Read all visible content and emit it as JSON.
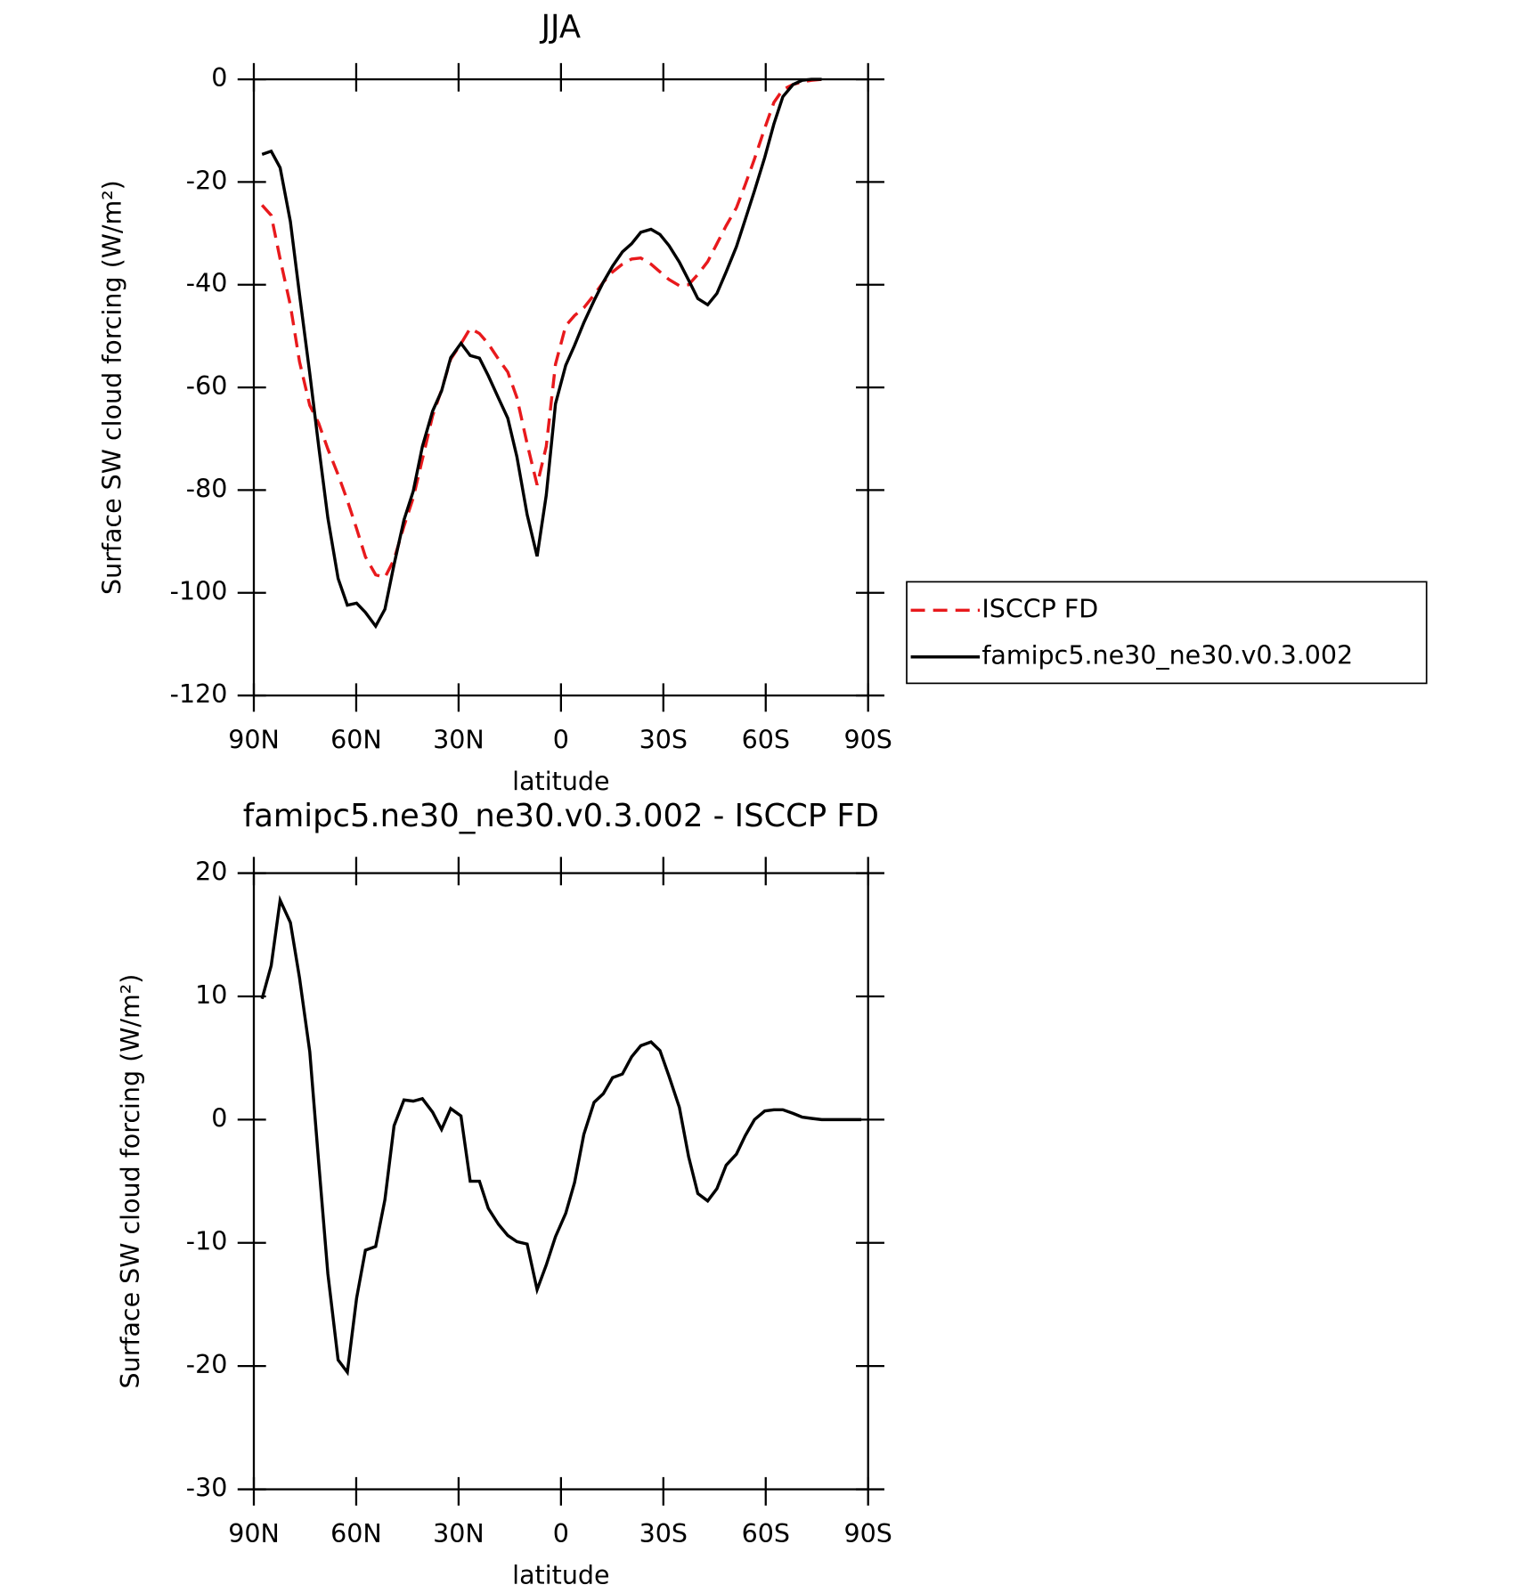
{
  "chart_data": [
    {
      "type": "line",
      "title": "JJA",
      "xlabel": "latitude",
      "ylabel": "Surface SW cloud forcing (W/m²)",
      "x": [
        87.6,
        84.9,
        82.3,
        79.3,
        76.6,
        73.6,
        71.0,
        68.3,
        65.3,
        62.6,
        59.9,
        57.3,
        54.3,
        51.6,
        48.9,
        46.0,
        43.3,
        40.6,
        37.6,
        35.0,
        32.3,
        29.3,
        26.6,
        23.9,
        21.3,
        18.3,
        15.6,
        12.9,
        9.9,
        7.0,
        4.3,
        1.6,
        -1.4,
        -4.0,
        -6.7,
        -9.7,
        -12.4,
        -15.1,
        -18.0,
        -20.7,
        -23.4,
        -26.4,
        -29.0,
        -31.7,
        -34.7,
        -37.4,
        -40.1,
        -43.0,
        -45.7,
        -48.4,
        -51.4,
        -54.0,
        -56.7,
        -59.7,
        -62.4,
        -65.0,
        -68.0,
        -70.7,
        -73.4,
        -76.4
      ],
      "series": [
        {
          "name": "ISCCP FD",
          "color": "#e8191c",
          "line_style": "dashed",
          "values": [
            -24.5,
            -26.5,
            -35,
            -44,
            -55,
            -63.5,
            -67,
            -72,
            -77,
            -82,
            -87.5,
            -93,
            -96.5,
            -97,
            -93.5,
            -87,
            -81.5,
            -74,
            -65.5,
            -60.5,
            -54.5,
            -51.5,
            -48.5,
            -49.5,
            -51.5,
            -54.5,
            -57,
            -62,
            -71,
            -79,
            -71.5,
            -55.5,
            -48,
            -46,
            -44.5,
            -42,
            -39.5,
            -37.5,
            -36,
            -35,
            -34.8,
            -36,
            -37.5,
            -39,
            -40.2,
            -40,
            -38,
            -35.5,
            -32,
            -28.5,
            -25,
            -20.5,
            -15.5,
            -9.5,
            -4.5,
            -2,
            -1,
            -0.5,
            -0.2,
            0
          ]
        },
        {
          "name": "famipc5.ne30_ne30.v0.3.002",
          "color": "#000000",
          "line_style": "solid",
          "values": [
            -14.6,
            -14.0,
            -17.2,
            -27.7,
            -41.9,
            -57.3,
            -71.5,
            -85.4,
            -97.2,
            -102.4,
            -102.0,
            -103.8,
            -106.5,
            -103.2,
            -94.5,
            -85.8,
            -80.2,
            -71.5,
            -64.6,
            -60.7,
            -54.2,
            -51.4,
            -53.8,
            -54.3,
            -57.7,
            -62.1,
            -66.0,
            -73.5,
            -84.8,
            -92.9,
            -81.0,
            -63.2,
            -55.7,
            -51.8,
            -47.4,
            -43.1,
            -39.5,
            -36.4,
            -33.6,
            -32.0,
            -29.8,
            -29.2,
            -30.2,
            -32.4,
            -35.6,
            -39.1,
            -42.7,
            -43.9,
            -41.7,
            -37.5,
            -32.6,
            -27.3,
            -21.7,
            -15.2,
            -8.7,
            -3.4,
            -1.0,
            -0.2,
            0,
            0
          ]
        }
      ],
      "xlim": [
        90,
        -90
      ],
      "xticks": [
        {
          "value": 90,
          "label": "90N"
        },
        {
          "value": 60,
          "label": "60N"
        },
        {
          "value": 30,
          "label": "30N"
        },
        0,
        {
          "value": -30,
          "label": "30S"
        },
        {
          "value": -60,
          "label": "60S"
        },
        {
          "value": -90,
          "label": "90S"
        }
      ],
      "ylim": [
        -120,
        0
      ],
      "yticks": [
        -120,
        -100,
        -80,
        -60,
        -40,
        -20,
        0
      ],
      "legend": "right"
    },
    {
      "type": "line",
      "title": "famipc5.ne30_ne30.v0.3.002 - ISCCP FD",
      "xlabel": "latitude",
      "ylabel": "Surface SW cloud forcing (W/m²)",
      "x": [
        87.6,
        84.9,
        82.3,
        79.3,
        76.6,
        73.6,
        71.0,
        68.3,
        65.3,
        62.6,
        59.9,
        57.3,
        54.3,
        51.6,
        48.9,
        46.0,
        43.3,
        40.6,
        37.6,
        35.0,
        32.3,
        29.3,
        26.6,
        23.9,
        21.3,
        18.3,
        15.6,
        12.9,
        9.9,
        7.0,
        4.3,
        1.6,
        -1.4,
        -4.0,
        -6.7,
        -9.7,
        -12.4,
        -15.1,
        -18.0,
        -20.7,
        -23.4,
        -26.4,
        -29.0,
        -31.7,
        -34.7,
        -37.4,
        -40.1,
        -43.0,
        -45.7,
        -48.4,
        -51.4,
        -54.0,
        -56.7,
        -59.7,
        -62.4,
        -65.0,
        -68.0,
        -70.7,
        -73.4,
        -76.4,
        -79.4,
        -82.4,
        -85.4,
        -88.0
      ],
      "series": [
        {
          "color": "#000000",
          "line_style": "solid",
          "values": [
            9.8,
            12.5,
            17.8,
            16,
            11.5,
            5.5,
            -3.5,
            -12.5,
            -19.5,
            -20.5,
            -14.5,
            -10.6,
            -10.3,
            -6.5,
            -0.5,
            1.6,
            1.5,
            1.7,
            0.6,
            -0.8,
            0.9,
            0.3,
            -5,
            -5,
            -7.2,
            -8.5,
            -9.4,
            -9.9,
            -10.1,
            -13.8,
            -11.8,
            -9.5,
            -7.6,
            -5.1,
            -1.2,
            1.4,
            2.1,
            3.4,
            3.7,
            5.1,
            6,
            6.3,
            5.6,
            3.5,
            1,
            -3,
            -6,
            -6.6,
            -5.6,
            -3.7,
            -2.8,
            -1.3,
            0,
            0.7,
            0.8,
            0.8,
            0.5,
            0.2,
            0.1,
            0,
            0,
            0,
            0,
            0
          ]
        }
      ],
      "xlim": [
        90,
        -90
      ],
      "xticks": [
        {
          "value": 90,
          "label": "90N"
        },
        {
          "value": 60,
          "label": "60N"
        },
        {
          "value": 30,
          "label": "30N"
        },
        0,
        {
          "value": -30,
          "label": "30S"
        },
        {
          "value": -60,
          "label": "60S"
        },
        {
          "value": -90,
          "label": "90S"
        }
      ],
      "ylim": [
        -30,
        20
      ],
      "yticks": [
        -30,
        -20,
        -10,
        0,
        10,
        20
      ]
    }
  ]
}
